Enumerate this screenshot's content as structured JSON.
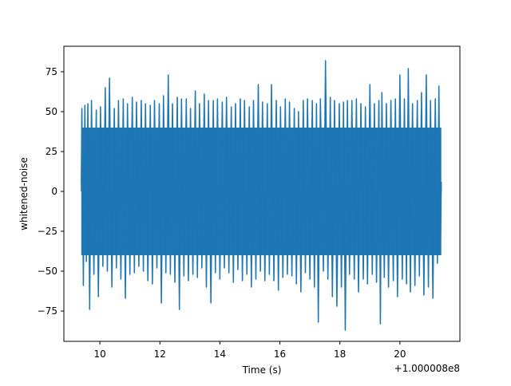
{
  "chart_data": {
    "type": "line",
    "title": "",
    "xlabel": "Time (s)",
    "ylabel": "whitened-noise",
    "x_offset_label": "+1.000008e8",
    "xlim": [
      8.8,
      22.0
    ],
    "ylim": [
      -94,
      91
    ],
    "x_ticks": [
      10,
      12,
      14,
      16,
      18,
      20
    ],
    "x_tick_labels": [
      "10",
      "12",
      "14",
      "16",
      "18",
      "20"
    ],
    "y_ticks": [
      -75,
      -50,
      -25,
      0,
      25,
      50,
      75
    ],
    "y_tick_labels": [
      "−75",
      "−50",
      "−25",
      "0",
      "25",
      "50",
      "75"
    ],
    "grid": false,
    "legend": "none",
    "series": [
      {
        "color": "#1f77b4",
        "x_range": [
          9.38,
          21.38
        ],
        "points": [
          [
            9.38,
            5
          ],
          [
            9.4,
            52
          ],
          [
            9.45,
            -59
          ],
          [
            9.5,
            54
          ],
          [
            9.55,
            -44
          ],
          [
            9.6,
            55
          ],
          [
            9.66,
            -74
          ],
          [
            9.72,
            57
          ],
          [
            9.8,
            -52
          ],
          [
            9.88,
            51
          ],
          [
            9.95,
            -66
          ],
          [
            10.02,
            53
          ],
          [
            10.1,
            -47
          ],
          [
            10.18,
            65
          ],
          [
            10.25,
            -50
          ],
          [
            10.32,
            71
          ],
          [
            10.4,
            -60
          ],
          [
            10.48,
            52
          ],
          [
            10.55,
            -48
          ],
          [
            10.62,
            57
          ],
          [
            10.7,
            -55
          ],
          [
            10.78,
            58
          ],
          [
            10.85,
            -67
          ],
          [
            10.92,
            55
          ],
          [
            11.0,
            -52
          ],
          [
            11.08,
            59
          ],
          [
            11.15,
            -51
          ],
          [
            11.22,
            56
          ],
          [
            11.3,
            -47
          ],
          [
            11.38,
            57
          ],
          [
            11.45,
            -50
          ],
          [
            11.52,
            55
          ],
          [
            11.6,
            -56
          ],
          [
            11.68,
            54
          ],
          [
            11.75,
            -58
          ],
          [
            11.82,
            57
          ],
          [
            11.9,
            -48
          ],
          [
            11.98,
            55
          ],
          [
            12.05,
            -70
          ],
          [
            12.12,
            60
          ],
          [
            12.2,
            -51
          ],
          [
            12.28,
            73
          ],
          [
            12.35,
            -52
          ],
          [
            12.42,
            55
          ],
          [
            12.5,
            -57
          ],
          [
            12.58,
            59
          ],
          [
            12.65,
            -74
          ],
          [
            12.72,
            58
          ],
          [
            12.8,
            -53
          ],
          [
            12.88,
            58
          ],
          [
            12.95,
            -56
          ],
          [
            13.02,
            52
          ],
          [
            13.1,
            -52
          ],
          [
            13.18,
            63
          ],
          [
            13.25,
            -54
          ],
          [
            13.32,
            55
          ],
          [
            13.4,
            -48
          ],
          [
            13.48,
            61
          ],
          [
            13.55,
            -60
          ],
          [
            13.62,
            57
          ],
          [
            13.7,
            -70
          ],
          [
            13.78,
            57
          ],
          [
            13.85,
            -51
          ],
          [
            13.92,
            58
          ],
          [
            14.0,
            -55
          ],
          [
            14.08,
            56
          ],
          [
            14.15,
            -48
          ],
          [
            14.22,
            59
          ],
          [
            14.3,
            -51
          ],
          [
            14.38,
            53
          ],
          [
            14.45,
            -57
          ],
          [
            14.52,
            55
          ],
          [
            14.6,
            -49
          ],
          [
            14.68,
            58
          ],
          [
            14.75,
            -56
          ],
          [
            14.82,
            57
          ],
          [
            14.9,
            -52
          ],
          [
            14.98,
            53
          ],
          [
            15.05,
            -60
          ],
          [
            15.12,
            57
          ],
          [
            15.2,
            -55
          ],
          [
            15.28,
            67
          ],
          [
            15.35,
            -50
          ],
          [
            15.42,
            56
          ],
          [
            15.5,
            -56
          ],
          [
            15.58,
            55
          ],
          [
            15.65,
            -52
          ],
          [
            15.72,
            67
          ],
          [
            15.8,
            -56
          ],
          [
            15.88,
            57
          ],
          [
            15.95,
            -62
          ],
          [
            16.02,
            53
          ],
          [
            16.1,
            -54
          ],
          [
            16.18,
            58
          ],
          [
            16.25,
            -52
          ],
          [
            16.32,
            56
          ],
          [
            16.4,
            -53
          ],
          [
            16.48,
            52
          ],
          [
            16.55,
            -58
          ],
          [
            16.62,
            50
          ],
          [
            16.7,
            -63
          ],
          [
            16.78,
            57
          ],
          [
            16.85,
            -51
          ],
          [
            16.92,
            58
          ],
          [
            17.0,
            -55
          ],
          [
            17.08,
            57
          ],
          [
            17.15,
            -60
          ],
          [
            17.22,
            55
          ],
          [
            17.28,
            -82
          ],
          [
            17.35,
            58
          ],
          [
            17.45,
            -50
          ],
          [
            17.52,
            82
          ],
          [
            17.6,
            -55
          ],
          [
            17.68,
            59
          ],
          [
            17.75,
            -66
          ],
          [
            17.82,
            57
          ],
          [
            17.9,
            -72
          ],
          [
            17.98,
            55
          ],
          [
            18.05,
            -60
          ],
          [
            18.12,
            56
          ],
          [
            18.18,
            -87
          ],
          [
            18.25,
            57
          ],
          [
            18.32,
            -52
          ],
          [
            18.4,
            57
          ],
          [
            18.48,
            -55
          ],
          [
            18.55,
            58
          ],
          [
            18.62,
            -63
          ],
          [
            18.7,
            55
          ],
          [
            18.78,
            -55
          ],
          [
            18.85,
            53
          ],
          [
            18.92,
            -58
          ],
          [
            19.0,
            67
          ],
          [
            19.08,
            -52
          ],
          [
            19.15,
            55
          ],
          [
            19.22,
            -57
          ],
          [
            19.3,
            57
          ],
          [
            19.35,
            -83
          ],
          [
            19.4,
            62
          ],
          [
            19.48,
            -54
          ],
          [
            19.55,
            55
          ],
          [
            19.62,
            -60
          ],
          [
            19.7,
            57
          ],
          [
            19.78,
            -56
          ],
          [
            19.85,
            58
          ],
          [
            19.92,
            -66
          ],
          [
            20.0,
            73
          ],
          [
            20.08,
            -55
          ],
          [
            20.15,
            58
          ],
          [
            20.22,
            -58
          ],
          [
            20.28,
            77
          ],
          [
            20.35,
            -63
          ],
          [
            20.42,
            55
          ],
          [
            20.5,
            -59
          ],
          [
            20.58,
            57
          ],
          [
            20.65,
            -53
          ],
          [
            20.72,
            62
          ],
          [
            20.8,
            -65
          ],
          [
            20.88,
            73
          ],
          [
            20.95,
            -60
          ],
          [
            21.02,
            57
          ],
          [
            21.1,
            -67
          ],
          [
            21.18,
            58
          ],
          [
            21.25,
            -45
          ],
          [
            21.3,
            66
          ],
          [
            21.35,
            -39
          ],
          [
            21.38,
            6
          ]
        ]
      }
    ]
  }
}
